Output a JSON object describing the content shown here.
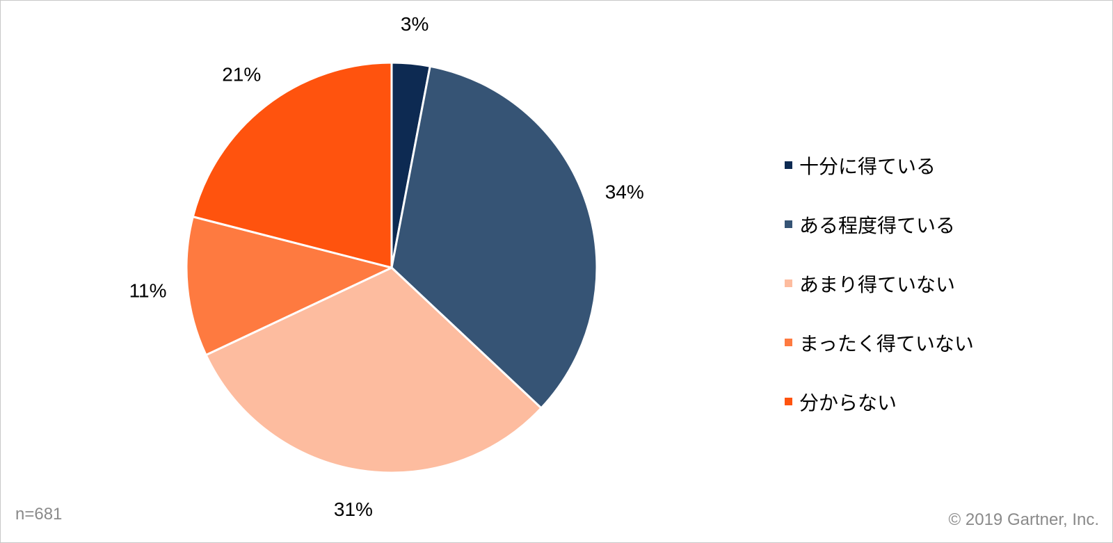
{
  "chart_data": {
    "type": "pie",
    "categories": [
      "十分に得ている",
      "ある程度得ている",
      "あまり得ていない",
      "まったく得ていない",
      "分からない"
    ],
    "values": [
      3,
      34,
      31,
      11,
      21
    ],
    "value_labels": [
      "3%",
      "34%",
      "31%",
      "11%",
      "21%"
    ],
    "colors": [
      "#0d2a52",
      "#365475",
      "#fdbc9f",
      "#fe7a40",
      "#ff530e"
    ],
    "start_angle": "12 o'clock",
    "direction": "clockwise",
    "legend_position": "right"
  },
  "footer": {
    "sample_size": "n=681",
    "copyright": "© 2019 Gartner, Inc."
  }
}
